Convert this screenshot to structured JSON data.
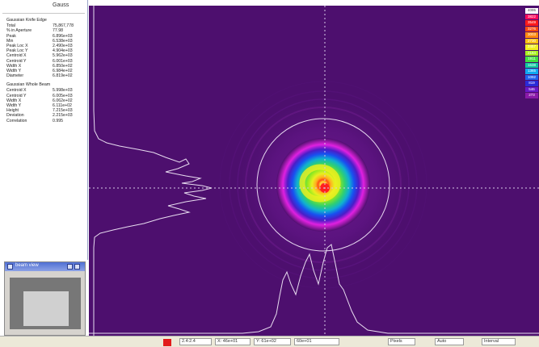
{
  "results_panel": {
    "header": "Gauss",
    "section1_title": "Gaussian Knife Edge",
    "section1_rows": [
      {
        "label": "Total",
        "value": "75,867,778"
      },
      {
        "label": "% in Aperture",
        "value": "77.98"
      },
      {
        "label": "Peak",
        "value": "6.896e+03"
      },
      {
        "label": "Min",
        "value": "6.538e+03"
      },
      {
        "label": "Peak Loc X",
        "value": "2.490e+03"
      },
      {
        "label": "Peak Loc Y",
        "value": "4.904e+03"
      },
      {
        "label": "Centroid X",
        "value": "5.962e+03"
      },
      {
        "label": "Centroid Y",
        "value": "6.001e+03"
      },
      {
        "label": "Width X",
        "value": "6.850e+02"
      },
      {
        "label": "Width Y",
        "value": "6.984e+02"
      },
      {
        "label": "Diameter",
        "value": "6.819e+02"
      }
    ],
    "section2_title": "Gaussian Whole Beam",
    "section2_rows": [
      {
        "label": "Centroid X",
        "value": "5.998e+03"
      },
      {
        "label": "Centroid Y",
        "value": "6.005e+03"
      },
      {
        "label": "Width X",
        "value": "6.062e+02"
      },
      {
        "label": "Width Y",
        "value": "6.111e+02"
      },
      {
        "label": "Height",
        "value": "7.215e+03"
      },
      {
        "label": "Deviation",
        "value": "2.215e+03"
      },
      {
        "label": "Correlation",
        "value": "0.995"
      }
    ]
  },
  "navigator": {
    "title": "beam view"
  },
  "legend": {
    "items": [
      {
        "label": "4095",
        "color": "#ffffff"
      },
      {
        "label": "3822",
        "color": "#ff0a5a"
      },
      {
        "label": "3549",
        "color": "#ff1a1a"
      },
      {
        "label": "3276",
        "color": "#ff4a10"
      },
      {
        "label": "3003",
        "color": "#ff8a10"
      },
      {
        "label": "2730",
        "color": "#ffc010"
      },
      {
        "label": "2457",
        "color": "#f0f020"
      },
      {
        "label": "2184",
        "color": "#a8f020"
      },
      {
        "label": "1911",
        "color": "#40e040"
      },
      {
        "label": "1638",
        "color": "#10c8a0"
      },
      {
        "label": "1365",
        "color": "#10a8f0"
      },
      {
        "label": "1092",
        "color": "#2060f0"
      },
      {
        "label": "819",
        "color": "#2a2ad8"
      },
      {
        "label": "546",
        "color": "#6a18c8"
      },
      {
        "label": "273",
        "color": "#8a1aa8"
      }
    ]
  },
  "status_bar": {
    "field1": "2.4:2.4",
    "field2": "X: 46e+01",
    "field3": "Y: 61e+02",
    "field4": "60e+01",
    "field5": "Pixels",
    "field6": "Auto",
    "field7": "Interval"
  },
  "colors": {
    "background": "#4d0f6e",
    "crosshair": "#d8c8e8",
    "profile": "#e8dcf0"
  }
}
